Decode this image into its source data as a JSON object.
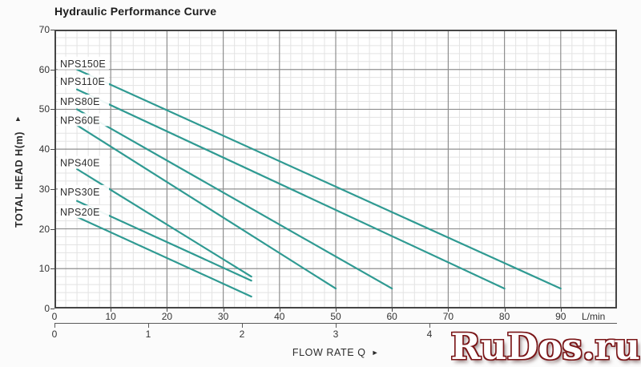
{
  "title": "Hydraulic Performance Curve",
  "icons": {
    "x_axis_arrow": "►",
    "y_axis_arrow": "▲"
  },
  "watermark": {
    "text": "RuDos.ru",
    "fill": "#ffffff",
    "outline": "#7a1517"
  },
  "colors": {
    "curve": "#2f9a92",
    "major_grid": "#8f8f8f",
    "minor_grid": "#e3e3e3",
    "border": "#454545",
    "text": "#2e2e2e",
    "label_halo": "#ffffff",
    "background": "#fbfbfb",
    "plot_background": "#ffffff"
  },
  "chart_data": {
    "type": "line",
    "title": "Hydraulic Performance Curve",
    "xlabel": "FLOW RATE Q",
    "ylabel": "TOTAL HEAD H(m)",
    "x_axis_primary": {
      "unit_label": "L/min",
      "ticks": [
        0,
        10,
        20,
        30,
        40,
        50,
        60,
        70,
        80,
        90
      ],
      "range": [
        0,
        100
      ]
    },
    "x_axis_secondary": {
      "ticks": [
        0,
        1,
        2,
        3,
        4
      ],
      "range": [
        0,
        6
      ],
      "lmin_per_unit": 16.667
    },
    "y_axis": {
      "ticks": [
        0,
        10,
        20,
        30,
        40,
        50,
        60,
        70
      ],
      "range": [
        0,
        70
      ]
    },
    "grid": {
      "minor_step_x": 2,
      "minor_step_y": 2,
      "major_step_x": 10,
      "major_step_y": 10,
      "grid_on": true
    },
    "legend_position": "curve-labels-inline",
    "series": [
      {
        "name": "NPS150E",
        "points": [
          [
            4,
            60
          ],
          [
            90,
            5
          ]
        ],
        "label": {
          "x": 1,
          "head": 61.5
        }
      },
      {
        "name": "NPS110E",
        "points": [
          [
            4,
            55
          ],
          [
            80,
            5
          ]
        ],
        "label": {
          "x": 1,
          "head": 57.0
        }
      },
      {
        "name": "NPS80E",
        "points": [
          [
            4,
            50
          ],
          [
            60,
            5
          ]
        ],
        "label": {
          "x": 1,
          "head": 52.0
        }
      },
      {
        "name": "NPS60E",
        "points": [
          [
            4,
            46
          ],
          [
            50,
            5
          ]
        ],
        "label": {
          "x": 1,
          "head": 47.3
        }
      },
      {
        "name": "NPS40E",
        "points": [
          [
            4,
            35
          ],
          [
            35,
            8
          ]
        ],
        "label": {
          "x": 1,
          "head": 36.6
        }
      },
      {
        "name": "NPS30E",
        "points": [
          [
            4,
            27
          ],
          [
            35,
            7
          ]
        ],
        "label": {
          "x": 1,
          "head": 29.3
        }
      },
      {
        "name": "NPS20E",
        "points": [
          [
            4,
            23
          ],
          [
            35,
            3
          ]
        ],
        "label": {
          "x": 1,
          "head": 24.2
        }
      }
    ]
  }
}
